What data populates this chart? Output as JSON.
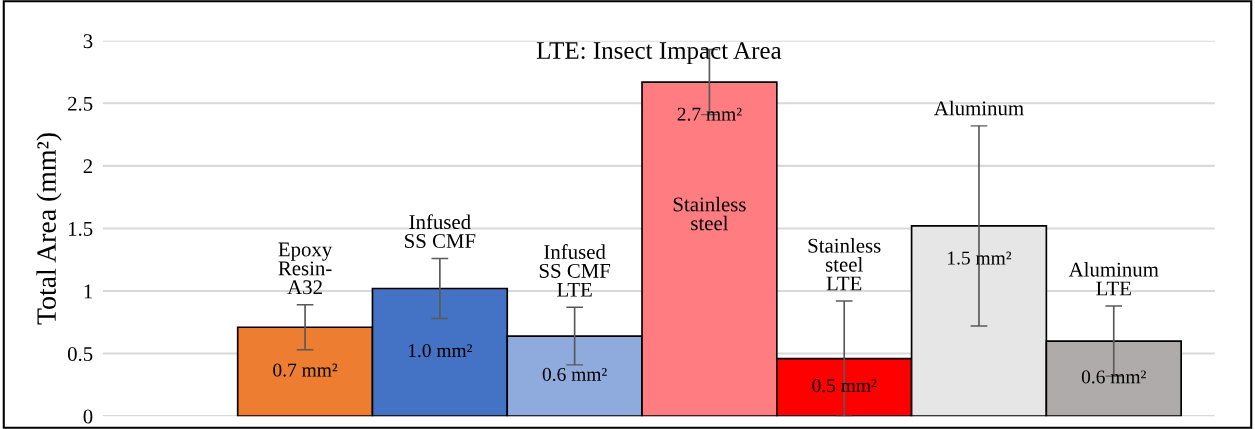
{
  "chart_data": {
    "type": "bar",
    "title": "LTE: Insect Impact Area",
    "ylabel": "Total Area (mm²)",
    "categories": [
      "Epoxy\nResin-\nA32",
      "Infused\nSS CMF",
      "Infused\nSS CMF\nLTE",
      "Stainless\nsteel",
      "Stainless\nsteel\nLTE",
      "Aluminum",
      "Aluminum\nLTE"
    ],
    "values": [
      0.71,
      1.02,
      0.64,
      2.67,
      0.46,
      1.52,
      0.6
    ],
    "errors": [
      0.18,
      0.24,
      0.23,
      0.26,
      0.46,
      0.8,
      0.28
    ],
    "colors": [
      "#ed7d31",
      "#4472c4",
      "#8faadc",
      "#ff7c80",
      "#ff0000",
      "#e6e6e6",
      "#afabab"
    ],
    "value_labels": [
      "0.7 mm²",
      "1.0 mm²",
      "0.6 mm²",
      "2.7 mm²",
      "0.5 mm²",
      "1.5 mm²",
      "0.6 mm²"
    ],
    "ylim": [
      0,
      3
    ],
    "yticks": [
      0,
      0.5,
      1,
      1.5,
      2,
      2.5,
      3
    ],
    "grid": "y",
    "tick_labels": "y"
  }
}
